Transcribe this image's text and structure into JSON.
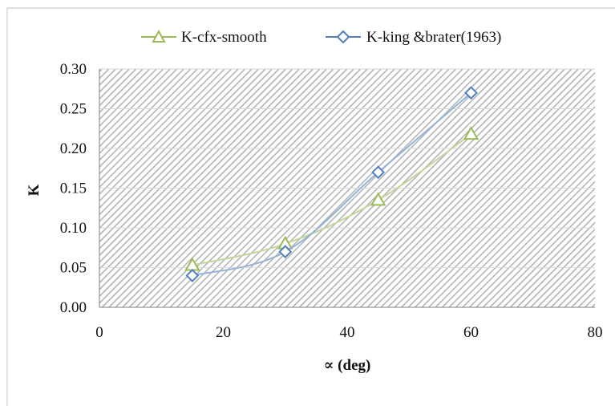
{
  "colors": {
    "series_cfx": "#9bbb59",
    "series_king": "#4f81bd",
    "series_king_line": "#95b3d7",
    "series_cfx_line": "#c3d69b",
    "hatch": "#b4b4b4",
    "axis": "#7f7f7f",
    "border": "#bfbfbf"
  },
  "chart_data": {
    "type": "line",
    "title": "",
    "xlabel": "∝ (deg)",
    "ylabel": "K",
    "xlim": [
      0,
      80
    ],
    "ylim": [
      0,
      0.3
    ],
    "x_ticks": [
      "0",
      "20",
      "40",
      "60",
      "80"
    ],
    "y_ticks": [
      "0.00",
      "0.05",
      "0.10",
      "0.15",
      "0.20",
      "0.25",
      "0.30"
    ],
    "grid": true,
    "legend_position": "top",
    "series": [
      {
        "name": "K-cfx-smooth",
        "marker": "triangle",
        "x": [
          15,
          30,
          45,
          60
        ],
        "values": [
          0.053,
          0.08,
          0.135,
          0.218
        ]
      },
      {
        "name": "K-king &brater(1963)",
        "marker": "diamond",
        "x": [
          15,
          30,
          45,
          60
        ],
        "values": [
          0.04,
          0.07,
          0.17,
          0.27
        ]
      }
    ]
  }
}
